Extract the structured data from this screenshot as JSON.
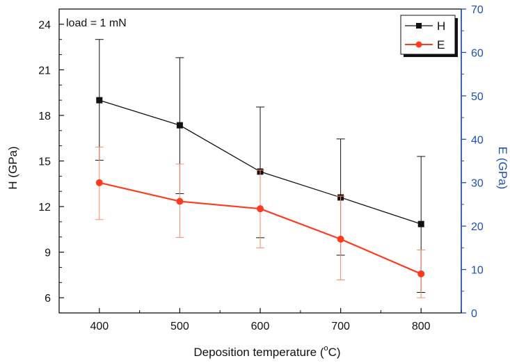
{
  "chart_data": {
    "type": "line",
    "annotation": "load = 1 mN",
    "xlabel_main": "Deposition temperature (",
    "xlabel_sup": "o",
    "xlabel_end": "C)",
    "ylabel_left": "H (GPa)",
    "ylabel_right": "E (GPa)",
    "x": [
      400,
      500,
      600,
      700,
      800
    ],
    "x_ticks": [
      "400",
      "500",
      "600",
      "700",
      "800"
    ],
    "xlim": [
      350,
      850
    ],
    "y_left_ticks": [
      "6",
      "9",
      "12",
      "15",
      "18",
      "21",
      "24"
    ],
    "ylim_left": [
      5,
      25
    ],
    "y_right_ticks": [
      "0",
      "10",
      "20",
      "30",
      "40",
      "50",
      "60",
      "70"
    ],
    "ylim_right": [
      0,
      70
    ],
    "right_axis_color": "#1f4fb5",
    "series": [
      {
        "name": "H",
        "axis": "left",
        "color": "#111111",
        "marker": "square",
        "values": [
          19.0,
          17.35,
          14.3,
          12.6,
          10.85
        ],
        "err_low": [
          15.05,
          12.85,
          9.95,
          8.8,
          6.35
        ],
        "err_high": [
          23.0,
          21.8,
          18.55,
          16.45,
          15.3
        ]
      },
      {
        "name": "E",
        "axis": "right",
        "color": "#ff3b1f",
        "errcolor": "#ff8a66",
        "marker": "circle",
        "values": [
          30.0,
          25.7,
          24.0,
          17.0,
          9.0
        ],
        "err_low": [
          21.5,
          17.4,
          15.0,
          7.6,
          3.5
        ],
        "err_high": [
          38.2,
          34.3,
          32.9,
          26.9,
          14.5
        ]
      }
    ],
    "legend": [
      "H",
      "E"
    ],
    "legend_position": "top-right",
    "grid": false
  }
}
